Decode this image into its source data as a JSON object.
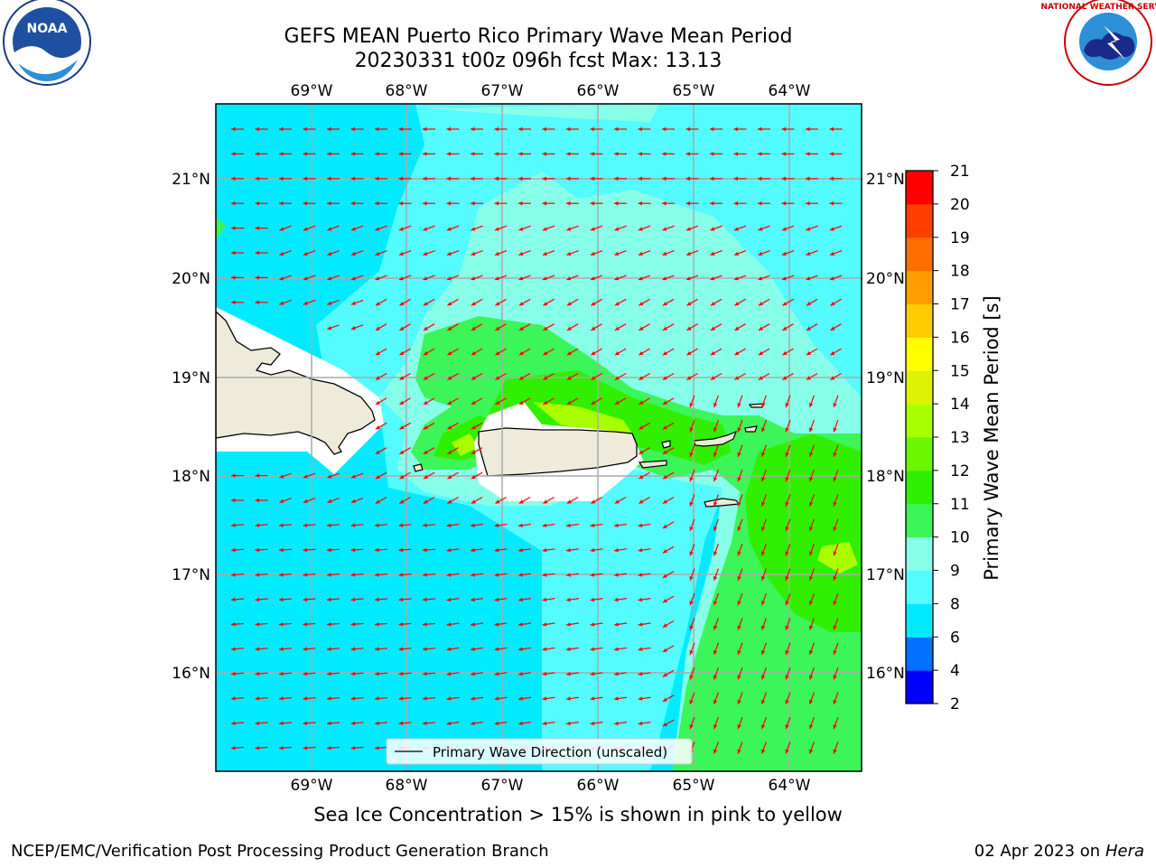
{
  "title": {
    "line1": "GEFS MEAN Puerto Rico Primary Wave Mean Period",
    "line2": "20230331 t00z 096h fcst   Max: 13.13"
  },
  "axes": {
    "lon_ticks": [
      "69°W",
      "68°W",
      "67°W",
      "66°W",
      "65°W",
      "64°W"
    ],
    "lat_ticks": [
      "21°N",
      "20°N",
      "19°N",
      "18°N",
      "17°N",
      "16°N"
    ]
  },
  "legend": {
    "label": "Primary Wave Direction (unscaled)"
  },
  "colorbar": {
    "label": "Primary Wave Mean Period [s]",
    "ticks": [
      "2",
      "4",
      "6",
      "8",
      "9",
      "10",
      "11",
      "12",
      "13",
      "14",
      "15",
      "16",
      "17",
      "18",
      "19",
      "20",
      "21"
    ],
    "colors": [
      "#0000ff",
      "#0070ff",
      "#00ebff",
      "#55fcff",
      "#88ffe9",
      "#3cf559",
      "#30ef00",
      "#6cf700",
      "#a9ff00",
      "#dcf200",
      "#ffff00",
      "#ffcc00",
      "#ff9e00",
      "#ff6f00",
      "#ff3e00",
      "#ff0000"
    ]
  },
  "logos": {
    "left": "NOAA",
    "right": "NATIONAL WEATHER SERVICE"
  },
  "footnote": "Sea Ice Concentration > 15% is shown in pink to yellow",
  "footer": {
    "left": "NCEP/EMC/Verification Post Processing Product Generation Branch",
    "right_prefix": "02 Apr 2023 on ",
    "right_host": "Hera"
  }
}
